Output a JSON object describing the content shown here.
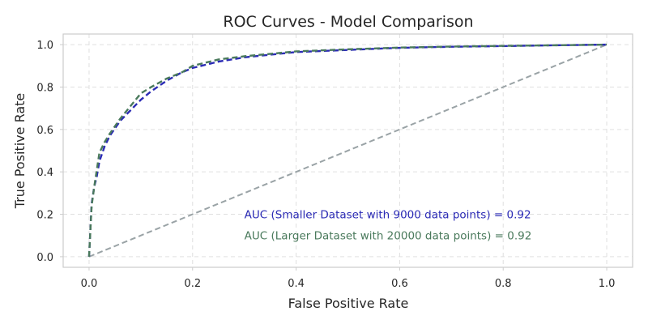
{
  "chart_data": {
    "type": "line",
    "title": "ROC Curves - Model Comparison",
    "xlabel": "False Positive Rate",
    "ylabel": "True Positive Rate",
    "xlim": [
      -0.05,
      1.05
    ],
    "ylim": [
      -0.05,
      1.05
    ],
    "xticks": [
      0.0,
      0.2,
      0.4,
      0.6,
      0.8,
      1.0
    ],
    "yticks": [
      0.0,
      0.2,
      0.4,
      0.6,
      0.8,
      1.0
    ],
    "tick_labels_x": [
      "0.0",
      "0.2",
      "0.4",
      "0.6",
      "0.8",
      "1.0"
    ],
    "tick_labels_y": [
      "0.0",
      "0.2",
      "0.4",
      "0.6",
      "0.8",
      "1.0"
    ],
    "grid": true,
    "series": [
      {
        "color": "#2b2bb5",
        "style": "dashed",
        "x": [
          0.0,
          0.005,
          0.01,
          0.015,
          0.02,
          0.03,
          0.04,
          0.06,
          0.08,
          0.1,
          0.12,
          0.15,
          0.18,
          0.2,
          0.25,
          0.3,
          0.4,
          0.5,
          0.6,
          0.7,
          0.8,
          0.9,
          1.0
        ],
        "y": [
          0.0,
          0.25,
          0.33,
          0.38,
          0.45,
          0.52,
          0.57,
          0.64,
          0.69,
          0.74,
          0.78,
          0.83,
          0.87,
          0.89,
          0.92,
          0.94,
          0.965,
          0.975,
          0.985,
          0.99,
          0.993,
          0.997,
          1.0
        ]
      },
      {
        "color": "#4a7a5c",
        "style": "dashed",
        "x": [
          0.0,
          0.005,
          0.01,
          0.015,
          0.02,
          0.03,
          0.04,
          0.06,
          0.08,
          0.1,
          0.12,
          0.15,
          0.18,
          0.2,
          0.25,
          0.3,
          0.4,
          0.5,
          0.6,
          0.7,
          0.8,
          0.9,
          1.0
        ],
        "y": [
          0.0,
          0.24,
          0.33,
          0.41,
          0.49,
          0.54,
          0.58,
          0.65,
          0.71,
          0.77,
          0.8,
          0.84,
          0.87,
          0.9,
          0.93,
          0.945,
          0.968,
          0.978,
          0.986,
          0.991,
          0.994,
          0.997,
          1.0
        ]
      },
      {
        "color": "#9aa3a6",
        "style": "dashed",
        "x": [
          0.0,
          1.0
        ],
        "y": [
          0.0,
          1.0
        ]
      }
    ],
    "annotations": [
      {
        "text": "AUC (Smaller Dataset with 9000 data points) = 0.92",
        "color": "#2b2bb5",
        "x": 0.3,
        "y": 0.2
      },
      {
        "text": "AUC (Larger Dataset with 20000 data points) = 0.92",
        "color": "#4a7a5c",
        "x": 0.3,
        "y": 0.1
      }
    ]
  }
}
